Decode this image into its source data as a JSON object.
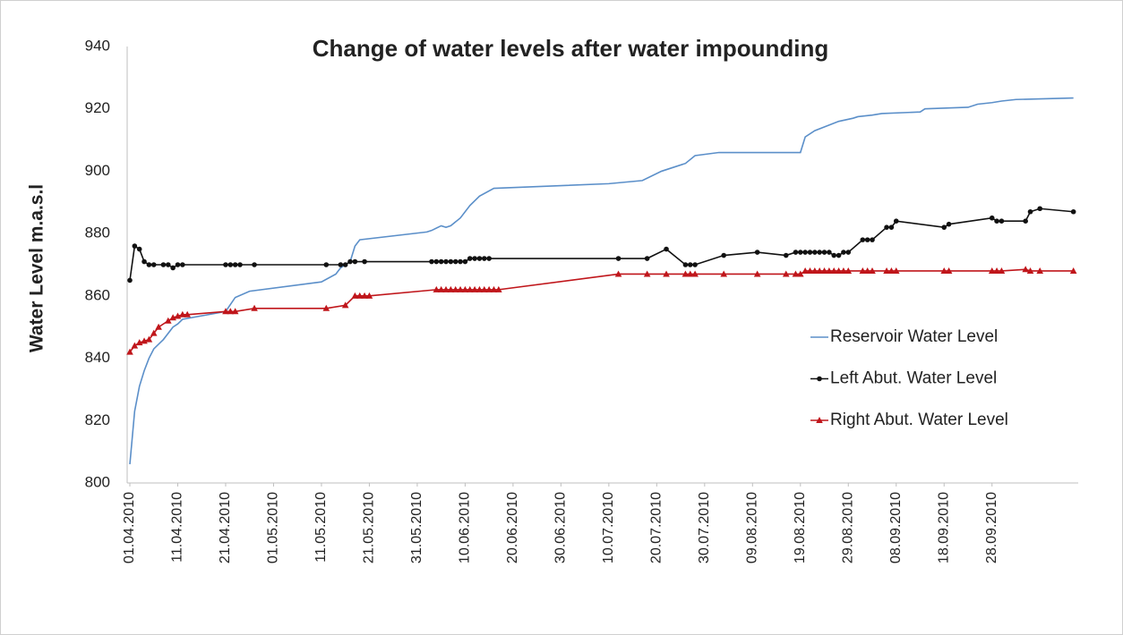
{
  "chart_data": {
    "type": "line",
    "title": "Change of water levels after water impounding",
    "y_label": "Water Level  m.a.s.l",
    "ylim": [
      800,
      940
    ],
    "yticks": [
      800,
      820,
      840,
      860,
      880,
      900,
      920,
      940
    ],
    "xlim": [
      "01.04.2010",
      "16.10.2010"
    ],
    "xticks": [
      "01.04.2010",
      "11.04.2010",
      "21.04.2010",
      "01.05.2010",
      "11.05.2010",
      "21.05.2010",
      "31.05.2010",
      "10.06.2010",
      "20.06.2010",
      "30.06.2010",
      "10.07.2010",
      "20.07.2010",
      "30.07.2010",
      "09.08.2010",
      "19.08.2010",
      "29.08.2010",
      "08.09.2010",
      "18.09.2010",
      "28.09.2010"
    ],
    "grid": false,
    "legend": "right",
    "series": [
      {
        "name": "Reservoir Water Level",
        "color": "#5b8fc9",
        "marker": null,
        "x": [
          "01.04.2010",
          "02.04.2010",
          "03.04.2010",
          "04.04.2010",
          "05.04.2010",
          "06.04.2010",
          "08.04.2010",
          "10.04.2010",
          "11.04.2010",
          "12.04.2010",
          "21.04.2010",
          "23.04.2010",
          "26.04.2010",
          "11.05.2010",
          "14.05.2010",
          "15.05.2010",
          "17.05.2010",
          "18.05.2010",
          "19.05.2010",
          "02.06.2010",
          "03.06.2010",
          "05.06.2010",
          "06.06.2010",
          "07.06.2010",
          "09.06.2010",
          "11.06.2010",
          "13.06.2010",
          "16.06.2010",
          "10.07.2010",
          "17.07.2010",
          "21.07.2010",
          "26.07.2010",
          "28.07.2010",
          "02.08.2010",
          "19.08.2010",
          "20.08.2010",
          "22.08.2010",
          "27.08.2010",
          "30.08.2010",
          "31.08.2010",
          "03.09.2010",
          "05.09.2010",
          "13.09.2010",
          "14.09.2010",
          "23.09.2010",
          "25.09.2010",
          "28.09.2010",
          "30.09.2010",
          "03.10.2010",
          "15.10.2010"
        ],
        "values": [
          806,
          823,
          831,
          836,
          840,
          843,
          846,
          850,
          851,
          852.5,
          855,
          859.5,
          861.5,
          864.5,
          867,
          869,
          871,
          876,
          878,
          880.5,
          881,
          882.5,
          882,
          882.5,
          885,
          889,
          892,
          894.5,
          896,
          897,
          900,
          902.5,
          905,
          906,
          906,
          911,
          913,
          916,
          917,
          917.5,
          918,
          918.5,
          919,
          920,
          920.5,
          921.5,
          922,
          922.5,
          923,
          923.5
        ]
      },
      {
        "name": "Left Abut. Water Level",
        "color": "#111111",
        "marker": "circle",
        "x": [
          "01.04.2010",
          "02.04.2010",
          "03.04.2010",
          "04.04.2010",
          "05.04.2010",
          "06.04.2010",
          "08.04.2010",
          "09.04.2010",
          "10.04.2010",
          "11.04.2010",
          "12.04.2010",
          "21.04.2010",
          "22.04.2010",
          "23.04.2010",
          "24.04.2010",
          "27.04.2010",
          "12.05.2010",
          "15.05.2010",
          "16.05.2010",
          "17.05.2010",
          "18.05.2010",
          "20.05.2010",
          "03.06.2010",
          "04.06.2010",
          "05.06.2010",
          "06.06.2010",
          "07.06.2010",
          "08.06.2010",
          "09.06.2010",
          "10.06.2010",
          "11.06.2010",
          "12.06.2010",
          "13.06.2010",
          "14.06.2010",
          "15.06.2010",
          "12.07.2010",
          "18.07.2010",
          "22.07.2010",
          "26.07.2010",
          "27.07.2010",
          "28.07.2010",
          "03.08.2010",
          "10.08.2010",
          "16.08.2010",
          "18.08.2010",
          "19.08.2010",
          "20.08.2010",
          "21.08.2010",
          "22.08.2010",
          "23.08.2010",
          "24.08.2010",
          "25.08.2010",
          "26.08.2010",
          "27.08.2010",
          "28.08.2010",
          "29.08.2010",
          "01.09.2010",
          "02.09.2010",
          "03.09.2010",
          "06.09.2010",
          "07.09.2010",
          "08.09.2010",
          "18.09.2010",
          "19.09.2010",
          "28.09.2010",
          "29.09.2010",
          "30.09.2010",
          "05.10.2010",
          "06.10.2010",
          "08.10.2010",
          "15.10.2010"
        ],
        "values": [
          865,
          876,
          875,
          871,
          870,
          870,
          870,
          870,
          869,
          870,
          870,
          870,
          870,
          870,
          870,
          870,
          870,
          870,
          870,
          871,
          871,
          871,
          871,
          871,
          871,
          871,
          871,
          871,
          871,
          871,
          872,
          872,
          872,
          872,
          872,
          872,
          872,
          875,
          870,
          870,
          870,
          873,
          874,
          873,
          874,
          874,
          874,
          874,
          874,
          874,
          874,
          874,
          873,
          873,
          874,
          874,
          878,
          878,
          878,
          882,
          882,
          884,
          882,
          883,
          885,
          884,
          884,
          884,
          887,
          888,
          887
        ]
      },
      {
        "name": "Right Abut. Water Level",
        "color": "#c0161b",
        "marker": "triangle",
        "x": [
          "01.04.2010",
          "02.04.2010",
          "03.04.2010",
          "04.04.2010",
          "05.04.2010",
          "06.04.2010",
          "07.04.2010",
          "09.04.2010",
          "10.04.2010",
          "11.04.2010",
          "12.04.2010",
          "13.04.2010",
          "21.04.2010",
          "22.04.2010",
          "23.04.2010",
          "27.04.2010",
          "12.05.2010",
          "16.05.2010",
          "18.05.2010",
          "19.05.2010",
          "20.05.2010",
          "21.05.2010",
          "04.06.2010",
          "05.06.2010",
          "06.06.2010",
          "07.06.2010",
          "08.06.2010",
          "09.06.2010",
          "10.06.2010",
          "11.06.2010",
          "12.06.2010",
          "13.06.2010",
          "14.06.2010",
          "15.06.2010",
          "16.06.2010",
          "17.06.2010",
          "12.07.2010",
          "18.07.2010",
          "22.07.2010",
          "26.07.2010",
          "27.07.2010",
          "28.07.2010",
          "03.08.2010",
          "10.08.2010",
          "16.08.2010",
          "18.08.2010",
          "19.08.2010",
          "20.08.2010",
          "21.08.2010",
          "22.08.2010",
          "23.08.2010",
          "24.08.2010",
          "25.08.2010",
          "26.08.2010",
          "27.08.2010",
          "28.08.2010",
          "29.08.2010",
          "01.09.2010",
          "02.09.2010",
          "03.09.2010",
          "06.09.2010",
          "07.09.2010",
          "08.09.2010",
          "18.09.2010",
          "19.09.2010",
          "28.09.2010",
          "29.09.2010",
          "30.09.2010",
          "05.10.2010",
          "06.10.2010",
          "08.10.2010",
          "15.10.2010"
        ],
        "values": [
          842,
          844,
          845,
          845.5,
          846,
          848,
          850,
          852,
          853,
          853.5,
          854,
          854,
          855,
          855,
          855,
          856,
          856,
          857,
          860,
          860,
          860,
          860,
          862,
          862,
          862,
          862,
          862,
          862,
          862,
          862,
          862,
          862,
          862,
          862,
          862,
          862,
          867,
          867,
          867,
          867,
          867,
          867,
          867,
          867,
          867,
          867,
          867,
          868,
          868,
          868,
          868,
          868,
          868,
          868,
          868,
          868,
          868,
          868,
          868,
          868,
          868,
          868,
          868,
          868,
          868,
          868,
          868,
          868,
          868.5,
          868,
          868,
          868
        ]
      }
    ]
  }
}
